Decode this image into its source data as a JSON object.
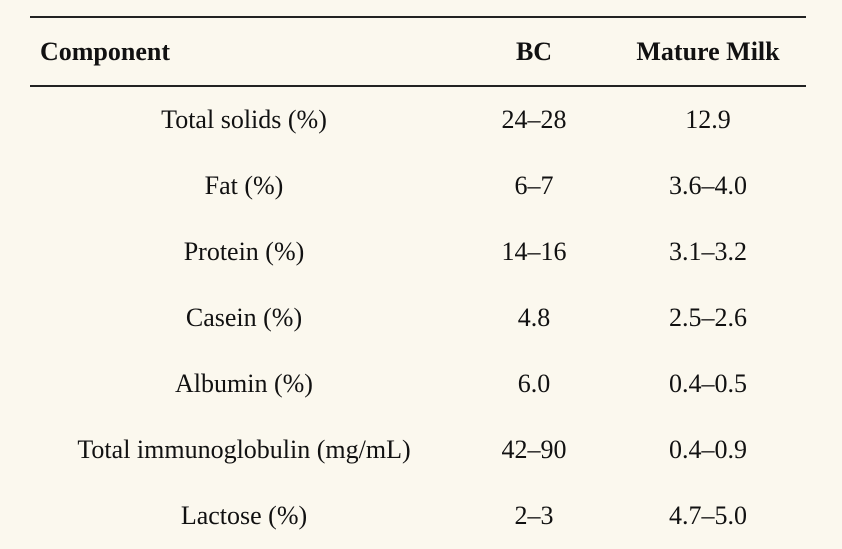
{
  "table": {
    "headers": [
      "Component",
      "BC",
      "Mature Milk"
    ],
    "rows": [
      [
        "Total solids (%)",
        "24–28",
        "12.9"
      ],
      [
        "Fat (%)",
        "6–7",
        "3.6–4.0"
      ],
      [
        "Protein (%)",
        "14–16",
        "3.1–3.2"
      ],
      [
        "Casein (%)",
        "4.8",
        "2.5–2.6"
      ],
      [
        "Albumin (%)",
        "6.0",
        "0.4–0.5"
      ],
      [
        "Total immunoglobulin (mg/mL)",
        "42–90",
        "0.4–0.9"
      ],
      [
        "Lactose (%)",
        "2–3",
        "4.7–5.0"
      ]
    ]
  },
  "colors": {
    "background": "#fbf8ee",
    "text": "#111111",
    "rule": "#222222"
  }
}
